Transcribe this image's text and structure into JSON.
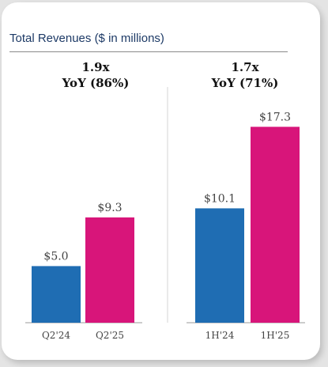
{
  "title": "Total Revenues ($ in millions)",
  "colors": {
    "prior_year": "#1f6db3",
    "current_year": "#d8157a",
    "axis": "#9a9a9a",
    "title": "#1d3a66"
  },
  "chart_data": [
    {
      "type": "bar",
      "growth_multiple": "1.9x",
      "growth_yoy": "YoY (86%)",
      "categories": [
        "Q2'24",
        "Q2'25"
      ],
      "values": [
        5.0,
        9.3
      ],
      "value_labels": [
        "$5.0",
        "$9.3"
      ],
      "bar_colors": [
        "#1f6db3",
        "#d8157a"
      ],
      "ylim": [
        0,
        19
      ],
      "grid": false
    },
    {
      "type": "bar",
      "growth_multiple": "1.7x",
      "growth_yoy": "YoY (71%)",
      "categories": [
        "1H'24",
        "1H'25"
      ],
      "values": [
        10.1,
        17.3
      ],
      "value_labels": [
        "$10.1",
        "$17.3"
      ],
      "bar_colors": [
        "#1f6db3",
        "#d8157a"
      ],
      "ylim": [
        0,
        19
      ],
      "grid": false
    }
  ]
}
